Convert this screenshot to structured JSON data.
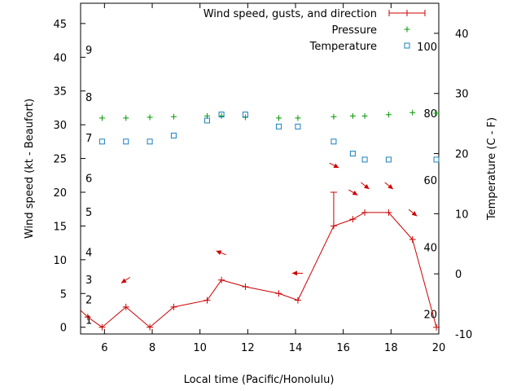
{
  "chart_data": {
    "type": "line",
    "xlabel": "Local time (Pacific/Honolulu)",
    "ylabel_left": "Wind speed (kt - Beaufort)",
    "ylabel_right": "Temperature (C - F)",
    "xlim": [
      5,
      20
    ],
    "ylim_left": [
      -1,
      48
    ],
    "ylim_right": [
      -10,
      45
    ],
    "x_ticks": [
      6,
      8,
      10,
      12,
      14,
      16,
      18,
      20
    ],
    "y_ticks_left": [
      0,
      5,
      10,
      15,
      20,
      25,
      30,
      35,
      40,
      45
    ],
    "y_ticks_right": [
      -10,
      0,
      10,
      20,
      30,
      40
    ],
    "beaufort_labels": [
      {
        "label": "1",
        "y": 1.1
      },
      {
        "label": "2",
        "y": 4.1
      },
      {
        "label": "3",
        "y": 7.1
      },
      {
        "label": "4",
        "y": 11.1
      },
      {
        "label": "5",
        "y": 17.1
      },
      {
        "label": "6",
        "y": 22.1
      },
      {
        "label": "7",
        "y": 28.1
      },
      {
        "label": "8",
        "y": 34.1
      },
      {
        "label": "9",
        "y": 41.1
      }
    ],
    "fahrenheit_labels": [
      {
        "label": "20",
        "t": -6.7
      },
      {
        "label": "40",
        "t": 4.4
      },
      {
        "label": "60",
        "t": 15.6
      },
      {
        "label": "80",
        "t": 26.7
      },
      {
        "label": "100",
        "t": 37.8
      }
    ],
    "legend": {
      "placement": "top-right",
      "wind": "Wind speed, gusts, and direction",
      "pressure": "Pressure",
      "temperature": "Temperature"
    },
    "series": [
      {
        "name": "Wind speed, gusts, and direction",
        "color": "#cc0000",
        "x": [
          5.3,
          5.9,
          6.9,
          7.9,
          8.9,
          10.3,
          10.9,
          11.9,
          13.3,
          14.1,
          15.6,
          16.4,
          16.9,
          17.9,
          18.9,
          19.9
        ],
        "y": [
          1.5,
          0,
          3,
          0,
          3,
          4,
          7,
          6,
          5,
          4,
          15,
          16,
          17,
          17,
          13,
          0
        ]
      },
      {
        "name": "Gusts",
        "color": "#cc0000",
        "x": [
          15.6
        ],
        "low": [
          15
        ],
        "high": [
          20
        ]
      },
      {
        "name": "Wind direction",
        "color": "#cc0000",
        "points": [
          {
            "x": 6.9,
            "y": 7,
            "dx": -6,
            "dy": 4
          },
          {
            "x": 10.9,
            "y": 11,
            "dx": -5,
            "dy": -2
          },
          {
            "x": 14.1,
            "y": 8,
            "dx": -7,
            "dy": 0
          },
          {
            "x": 15.6,
            "y": 24,
            "dx": 6,
            "dy": 3
          },
          {
            "x": 16.4,
            "y": 20,
            "dx": 5,
            "dy": 3
          },
          {
            "x": 16.9,
            "y": 21,
            "dx": 5,
            "dy": 4
          },
          {
            "x": 17.9,
            "y": 21,
            "dx": 5,
            "dy": 4
          },
          {
            "x": 18.9,
            "y": 17,
            "dx": 5,
            "dy": 4
          }
        ]
      },
      {
        "name": "Pressure",
        "color": "#009900",
        "x": [
          5.9,
          6.9,
          7.9,
          8.9,
          10.3,
          10.9,
          11.9,
          13.3,
          14.1,
          15.6,
          16.4,
          16.9,
          17.9,
          18.9,
          19.9
        ],
        "y": [
          31,
          31,
          31.1,
          31.2,
          31.3,
          31.3,
          31.1,
          31,
          31,
          31.2,
          31.3,
          31.3,
          31.5,
          31.8,
          31.7
        ]
      },
      {
        "name": "Temperature",
        "color": "#1a7fbf",
        "x": [
          5.9,
          6.9,
          7.9,
          8.9,
          10.3,
          10.9,
          11.9,
          13.3,
          14.1,
          15.6,
          16.4,
          16.9,
          17.9,
          19.9
        ],
        "y": [
          22,
          22,
          22,
          23,
          25.5,
          26.5,
          26.5,
          24.5,
          24.5,
          22,
          20,
          19,
          19,
          19
        ]
      }
    ]
  }
}
